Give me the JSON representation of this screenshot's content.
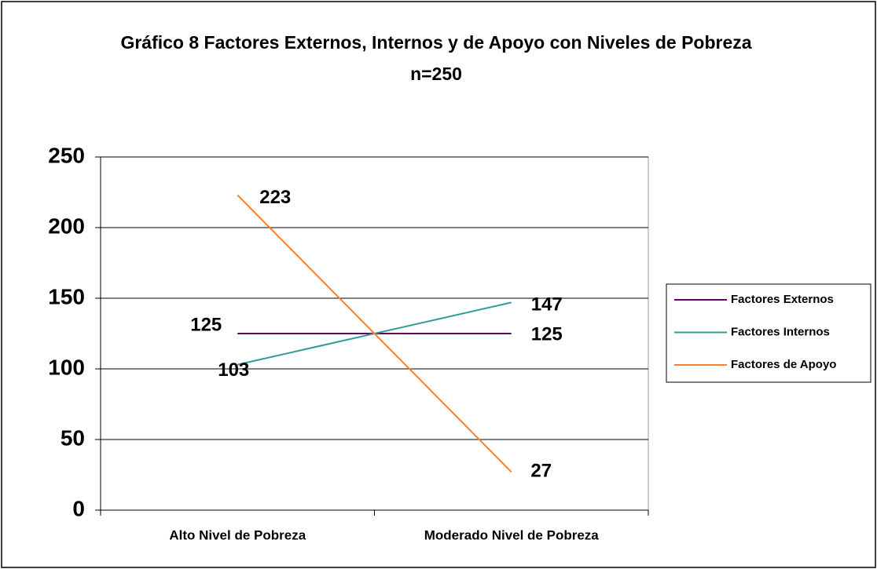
{
  "chart_data": {
    "type": "line",
    "title": "Gráfico 8 Factores Externos, Internos y de Apoyo con Niveles de Pobreza n=250",
    "categories": [
      "Alto Nivel de Pobreza",
      "Moderado Nivel de Pobreza"
    ],
    "series": [
      {
        "name": "Factores Externos",
        "color": "#660066",
        "values": [
          125,
          125
        ]
      },
      {
        "name": "Factores Internos",
        "color": "#2e9c94",
        "values": [
          103,
          147
        ]
      },
      {
        "name": "Factores de Apoyo",
        "color": "#ff7f27",
        "values": [
          223,
          27
        ]
      }
    ],
    "ylim": [
      0,
      250
    ],
    "yticks": [
      0,
      50,
      100,
      150,
      200,
      250
    ],
    "grid": true,
    "legend": "right"
  }
}
